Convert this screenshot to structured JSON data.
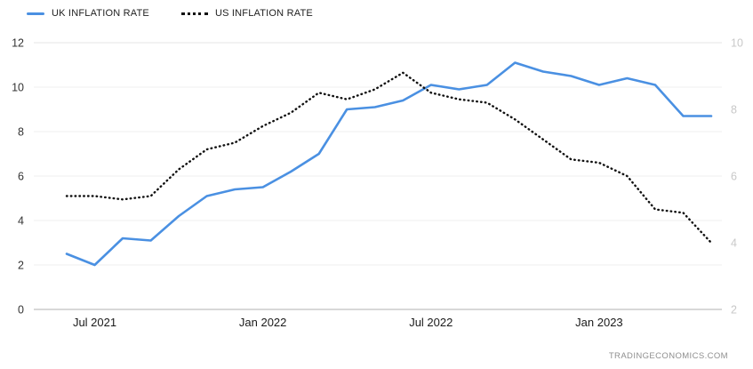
{
  "attribution": "TRADINGECONOMICS.COM",
  "chart_data": {
    "type": "line",
    "title": "",
    "x": [
      "Jun 2021",
      "Jul 2021",
      "Aug 2021",
      "Sep 2021",
      "Oct 2021",
      "Nov 2021",
      "Dec 2021",
      "Jan 2022",
      "Feb 2022",
      "Mar 2022",
      "Apr 2022",
      "May 2022",
      "Jun 2022",
      "Jul 2022",
      "Aug 2022",
      "Sep 2022",
      "Oct 2022",
      "Nov 2022",
      "Dec 2022",
      "Jan 2023",
      "Feb 2023",
      "Mar 2023",
      "Apr 2023",
      "May 2023"
    ],
    "series": [
      {
        "name": "UK INFLATION RATE",
        "axis": "left",
        "color": "#4a90e2",
        "style": "solid",
        "values": [
          2.5,
          2.0,
          3.2,
          3.1,
          4.2,
          5.1,
          5.4,
          5.5,
          6.2,
          7.0,
          9.0,
          9.1,
          9.4,
          10.1,
          9.9,
          10.1,
          11.1,
          10.7,
          10.5,
          10.1,
          10.4,
          10.1,
          8.7,
          8.7
        ]
      },
      {
        "name": "US INFLATION RATE",
        "axis": "right",
        "color": "#111111",
        "style": "dotted",
        "values": [
          5.4,
          5.4,
          5.3,
          5.4,
          6.2,
          6.8,
          7.0,
          7.5,
          7.9,
          8.5,
          8.3,
          8.6,
          9.1,
          8.5,
          8.3,
          8.2,
          7.7,
          7.1,
          6.5,
          6.4,
          6.0,
          5.0,
          4.9,
          4.0
        ]
      }
    ],
    "y_left": {
      "min": 0,
      "max": 12,
      "ticks": [
        0,
        2,
        4,
        6,
        8,
        10,
        12
      ]
    },
    "y_right": {
      "min": 2,
      "max": 10,
      "ticks": [
        2,
        4,
        6,
        8,
        10
      ]
    },
    "x_tick_labels": [
      "Jul 2021",
      "Jan 2022",
      "Jul 2022",
      "Jan 2023"
    ],
    "grid": "horizontal-faint",
    "legend_position": "top-left",
    "colors": {
      "left_axis_text": "#333333",
      "right_axis_text": "#c8c8c8",
      "x_axis_text": "#1a1a1a",
      "baseline": "#b0b0b0",
      "gridline": "#efefef",
      "topline": "#e6e6e6"
    }
  }
}
